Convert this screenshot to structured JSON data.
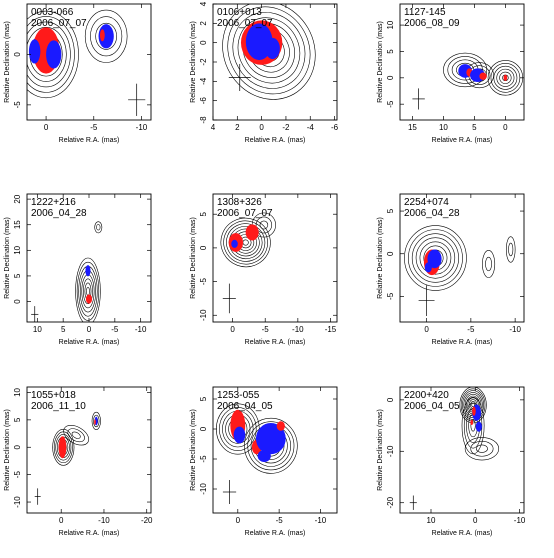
{
  "colors": {
    "red_patch": "#ff1a1a",
    "blue_patch": "#1a1aff",
    "contour": "#000000",
    "axes": "#000000"
  },
  "chart_data": [
    {
      "type": "contour",
      "source": "0003-066",
      "date": "2006_07_07",
      "xlabel": "Relative R.A. (mas)",
      "ylabel": "Relative Declination (mas)",
      "xlim": [
        2,
        -11
      ],
      "ylim": [
        -6.5,
        5
      ],
      "xticks": [
        0,
        -5,
        -10
      ],
      "yticks": [
        -5,
        0
      ],
      "components": [
        {
          "x": 0,
          "y": 0,
          "rx": 3.4,
          "ry": 4.3,
          "levels": 8,
          "pa": 0
        },
        {
          "x": -6.3,
          "y": 1.8,
          "rx": 2.2,
          "ry": 2.6,
          "levels": 4,
          "pa": 0
        }
      ],
      "patches": [
        {
          "color": "red",
          "x": 0,
          "y": 0.4,
          "rx": 1.4,
          "ry": 2.3
        },
        {
          "color": "blue",
          "x": -0.8,
          "y": 0,
          "rx": 0.8,
          "ry": 1.4
        },
        {
          "color": "blue",
          "x": 1.2,
          "y": 0.3,
          "rx": 0.6,
          "ry": 1.2
        },
        {
          "color": "blue",
          "x": -6.3,
          "y": 1.8,
          "rx": 0.8,
          "ry": 1.2
        },
        {
          "color": "red",
          "x": -5.9,
          "y": 1.9,
          "rx": 0.25,
          "ry": 0.6
        }
      ],
      "beam": {
        "x": -9.5,
        "y": -4.5,
        "rx": 0.9,
        "ry": 1.6
      }
    },
    {
      "type": "contour",
      "source": "0106+013",
      "date": "2006_07_07",
      "xlabel": "Relative R.A. (mas)",
      "ylabel": "Relative Declination (mas)",
      "xlim": [
        4,
        -6.2
      ],
      "ylim": [
        -8,
        4
      ],
      "xticks": [
        4,
        2,
        0,
        -2,
        -4,
        -6
      ],
      "yticks": [
        -8,
        -6,
        -4,
        -2,
        0,
        2,
        4
      ],
      "components": [
        {
          "x": -0.6,
          "y": -0.8,
          "rx": 3.7,
          "ry": 5.2,
          "levels": 9,
          "pa": -30
        }
      ],
      "patches": [
        {
          "color": "red",
          "x": 0,
          "y": 0,
          "rx": 1.7,
          "ry": 2.3
        },
        {
          "color": "blue",
          "x": 0.2,
          "y": 0.1,
          "rx": 1.1,
          "ry": 1.9
        },
        {
          "color": "blue",
          "x": -0.9,
          "y": -0.6,
          "rx": 0.6,
          "ry": 1.1
        }
      ],
      "beam": {
        "x": 1.8,
        "y": -3.6,
        "rx": 0.9,
        "ry": 1.4
      }
    },
    {
      "type": "contour",
      "source": "1127-145",
      "date": "2006_08_09",
      "xlabel": "Relative R.A. (mas)",
      "ylabel": "Relative Declination (mas)",
      "xlim": [
        17,
        -3
      ],
      "ylim": [
        -8,
        14
      ],
      "xticks": [
        15,
        10,
        5,
        0
      ],
      "yticks": [
        -5,
        0,
        5,
        10
      ],
      "components": [
        {
          "x": 6.5,
          "y": 1.5,
          "rx": 3.5,
          "ry": 3.2,
          "levels": 5,
          "pa": 0
        },
        {
          "x": 4.2,
          "y": 0.5,
          "rx": 2.3,
          "ry": 2.4,
          "levels": 4,
          "pa": 0
        },
        {
          "x": 0,
          "y": 0,
          "rx": 2.8,
          "ry": 3.3,
          "levels": 6,
          "pa": 0
        }
      ],
      "patches": [
        {
          "color": "blue",
          "x": 6.5,
          "y": 1.3,
          "rx": 1.1,
          "ry": 1.3
        },
        {
          "color": "red",
          "x": 5.8,
          "y": 1.0,
          "rx": 0.5,
          "ry": 0.8
        },
        {
          "color": "blue",
          "x": 4.5,
          "y": 0.5,
          "rx": 1.2,
          "ry": 1.3
        },
        {
          "color": "red",
          "x": 3.6,
          "y": 0.3,
          "rx": 0.6,
          "ry": 0.7
        },
        {
          "color": "red",
          "x": 0,
          "y": 0,
          "rx": 0.3,
          "ry": 0.6
        }
      ],
      "beam": {
        "x": 14,
        "y": -4,
        "rx": 1.0,
        "ry": 2.0
      }
    },
    {
      "type": "contour",
      "source": "1222+216",
      "date": "2006_04_28",
      "xlabel": "Relative R.A. (mas)",
      "ylabel": "Relative Declination (mas)",
      "xlim": [
        12,
        -12
      ],
      "ylim": [
        -4,
        21
      ],
      "xticks": [
        10,
        5,
        0,
        -5,
        -10
      ],
      "yticks": [
        0,
        5,
        10,
        15,
        20
      ],
      "components": [
        {
          "x": 0.2,
          "y": 2,
          "rx": 2.4,
          "ry": 6.5,
          "levels": 8,
          "pa": 0
        },
        {
          "x": -1.8,
          "y": 14.5,
          "rx": 0.7,
          "ry": 1.1,
          "levels": 2,
          "pa": 0
        }
      ],
      "patches": [
        {
          "color": "red",
          "x": 0,
          "y": 0.5,
          "rx": 0.6,
          "ry": 0.9
        },
        {
          "color": "blue",
          "x": 0.2,
          "y": 6,
          "rx": 0.5,
          "ry": 1.1
        }
      ],
      "beam": {
        "x": 10.5,
        "y": -2.5,
        "rx": 0.7,
        "ry": 1.6
      }
    },
    {
      "type": "contour",
      "source": "1308+326",
      "date": "2006_07_07",
      "xlabel": "Relative R.A. (mas)",
      "ylabel": "Relative Declination (mas)",
      "xlim": [
        3,
        -16
      ],
      "ylim": [
        -11,
        8
      ],
      "xticks": [
        0,
        -5,
        -10,
        -15
      ],
      "yticks": [
        -10,
        -5,
        0,
        5
      ],
      "components": [
        {
          "x": -2,
          "y": 0.8,
          "rx": 3.8,
          "ry": 3.6,
          "levels": 9,
          "pa": 20
        },
        {
          "x": -4.8,
          "y": 3.4,
          "rx": 1.8,
          "ry": 1.8,
          "levels": 3,
          "pa": 0
        }
      ],
      "patches": [
        {
          "color": "red",
          "x": -0.5,
          "y": 0.8,
          "rx": 1.1,
          "ry": 1.4
        },
        {
          "color": "blue",
          "x": -0.3,
          "y": 0.6,
          "rx": 0.5,
          "ry": 0.6
        },
        {
          "color": "red",
          "x": -3.0,
          "y": 2.3,
          "rx": 1.0,
          "ry": 1.2
        }
      ],
      "beam": {
        "x": 0.5,
        "y": -7.5,
        "rx": 1.0,
        "ry": 2.2
      }
    },
    {
      "type": "contour",
      "source": "2254+074",
      "date": "2006_04_28",
      "xlabel": "Relative R.A. (mas)",
      "ylabel": "Relative Declination (mas)",
      "xlim": [
        3,
        -11
      ],
      "ylim": [
        -8,
        7
      ],
      "xticks": [
        0,
        -5,
        -10
      ],
      "yticks": [
        -5,
        0,
        5
      ],
      "components": [
        {
          "x": -1,
          "y": -0.5,
          "rx": 3.5,
          "ry": 3.8,
          "levels": 8,
          "pa": 0
        },
        {
          "x": -7,
          "y": -1.2,
          "rx": 0.7,
          "ry": 1.6,
          "levels": 2,
          "pa": 0
        },
        {
          "x": -9.5,
          "y": 0.5,
          "rx": 0.5,
          "ry": 1.5,
          "levels": 2,
          "pa": 0
        }
      ],
      "patches": [
        {
          "color": "red",
          "x": -0.6,
          "y": -1.0,
          "rx": 0.9,
          "ry": 1.5
        },
        {
          "color": "blue",
          "x": -0.9,
          "y": -0.6,
          "rx": 0.8,
          "ry": 1.1
        },
        {
          "color": "blue",
          "x": -0.2,
          "y": -1.6,
          "rx": 0.4,
          "ry": 0.6
        }
      ],
      "beam": {
        "x": 0,
        "y": -5.5,
        "rx": 0.9,
        "ry": 1.8
      }
    },
    {
      "type": "contour",
      "source": "1055+018",
      "date": "2006_11_10",
      "xlabel": "Relative R.A. (mas)",
      "ylabel": "Relative Declination (mas)",
      "xlim": [
        8,
        -21
      ],
      "ylim": [
        -12,
        11
      ],
      "xticks": [
        0,
        -10,
        -20
      ],
      "yticks": [
        -10,
        -5,
        0,
        5,
        10
      ],
      "components": [
        {
          "x": -0.5,
          "y": 0,
          "rx": 2.5,
          "ry": 3.3,
          "levels": 7,
          "pa": 0
        },
        {
          "x": -3.5,
          "y": 2.2,
          "rx": 3.2,
          "ry": 1.5,
          "levels": 3,
          "pa": 30
        },
        {
          "x": -8.2,
          "y": 4.8,
          "rx": 1.0,
          "ry": 1.6,
          "levels": 3,
          "pa": 0
        }
      ],
      "patches": [
        {
          "color": "red",
          "x": -0.3,
          "y": 0,
          "rx": 0.9,
          "ry": 2.0
        },
        {
          "color": "blue",
          "x": -8.2,
          "y": 4.8,
          "rx": 0.35,
          "ry": 0.8
        },
        {
          "color": "red",
          "x": -7.9,
          "y": 4.6,
          "rx": 0.2,
          "ry": 0.5
        }
      ],
      "beam": {
        "x": 5.5,
        "y": -9,
        "rx": 0.7,
        "ry": 1.5
      }
    },
    {
      "type": "contour",
      "source": "1253-055",
      "date": "2006_04_05",
      "xlabel": "Relative R.A. (mas)",
      "ylabel": "Relative Declination (mas)",
      "xlim": [
        3,
        -12
      ],
      "ylim": [
        -14,
        7
      ],
      "xticks": [
        0,
        -5,
        -10
      ],
      "yticks": [
        -10,
        -5,
        0,
        5
      ],
      "components": [
        {
          "x": 0,
          "y": 0,
          "rx": 2.6,
          "ry": 4.2,
          "levels": 7,
          "pa": 0
        },
        {
          "x": -4,
          "y": -2.8,
          "rx": 3.2,
          "ry": 4.6,
          "levels": 8,
          "pa": 0
        }
      ],
      "patches": [
        {
          "color": "red",
          "x": 0,
          "y": 0.6,
          "rx": 0.9,
          "ry": 2.6
        },
        {
          "color": "blue",
          "x": -0.2,
          "y": -1.0,
          "rx": 0.7,
          "ry": 1.4
        },
        {
          "color": "red",
          "x": -2.3,
          "y": -3.0,
          "rx": 0.6,
          "ry": 1.2
        },
        {
          "color": "blue",
          "x": -4,
          "y": -1.6,
          "rx": 1.8,
          "ry": 2.6
        },
        {
          "color": "blue",
          "x": -3.2,
          "y": -4.5,
          "rx": 0.8,
          "ry": 1.0
        },
        {
          "color": "red",
          "x": -5.2,
          "y": 0.5,
          "rx": 0.5,
          "ry": 0.8
        }
      ],
      "beam": {
        "x": 1,
        "y": -10.5,
        "rx": 0.8,
        "ry": 2.0
      }
    },
    {
      "type": "contour",
      "source": "2200+420",
      "date": "2006_04_05",
      "xlabel": "Relative R.A. (mas)",
      "ylabel": "Relative Declination (mas)",
      "xlim": [
        17,
        -11
      ],
      "ylim": [
        -22,
        2.5
      ],
      "xticks": [
        10,
        0,
        -10
      ],
      "yticks": [
        -20,
        -10,
        0
      ],
      "components": [
        {
          "x": 0.5,
          "y": -1,
          "rx": 3.0,
          "ry": 3.5,
          "levels": 10,
          "pa": 0
        },
        {
          "x": 0.5,
          "y": -5,
          "rx": 2.5,
          "ry": 5.5,
          "levels": 5,
          "pa": 0
        },
        {
          "x": -1.5,
          "y": -9.5,
          "rx": 3.8,
          "ry": 2.2,
          "levels": 3,
          "pa": 0
        }
      ],
      "patches": [
        {
          "color": "blue",
          "x": -0.3,
          "y": -2.5,
          "rx": 1.0,
          "ry": 1.6
        },
        {
          "color": "red",
          "x": 0.3,
          "y": -2.2,
          "rx": 0.4,
          "ry": 0.9
        },
        {
          "color": "blue",
          "x": -0.8,
          "y": -5.2,
          "rx": 0.7,
          "ry": 1.0
        },
        {
          "color": "red",
          "x": 0.8,
          "y": -4.4,
          "rx": 0.3,
          "ry": 0.5
        }
      ],
      "beam": {
        "x": 14,
        "y": -20,
        "rx": 0.8,
        "ry": 1.4
      }
    }
  ]
}
